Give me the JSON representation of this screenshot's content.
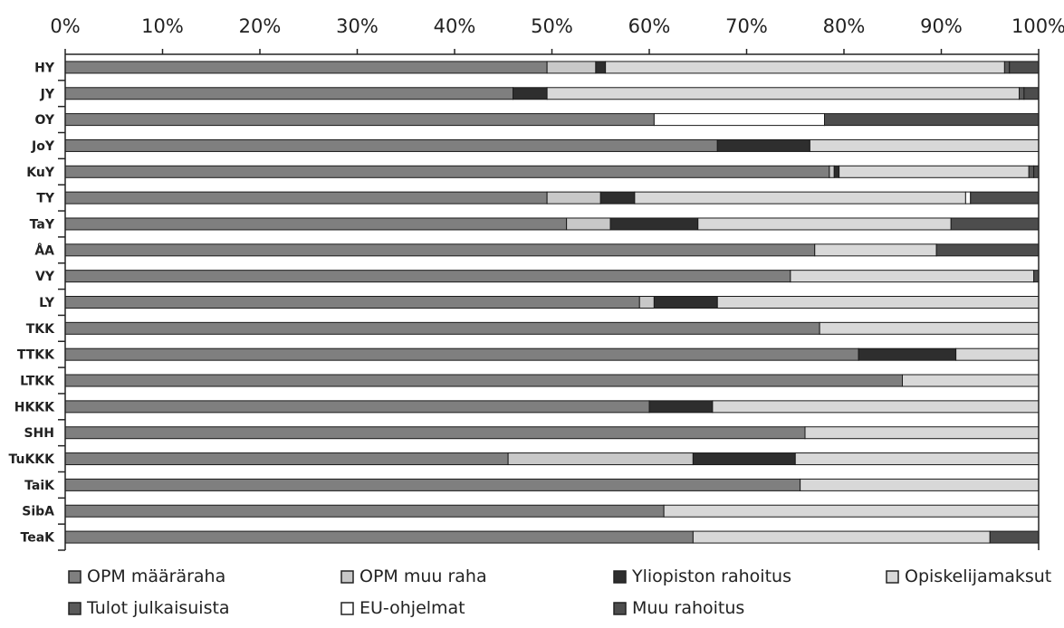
{
  "chart_data": {
    "type": "bar",
    "orientation": "horizontal",
    "stacked": true,
    "percent_stacked": true,
    "title": "",
    "xlabel": "",
    "ylabel": "",
    "xlim": [
      0,
      100
    ],
    "x_tick_labels": [
      "0%",
      "10%",
      "20%",
      "30%",
      "40%",
      "50%",
      "60%",
      "70%",
      "80%",
      "90%",
      "100%"
    ],
    "categories": [
      "HY",
      "JY",
      "OY",
      "JoY",
      "KuY",
      "TY",
      "TaY",
      "ÅA",
      "VY",
      "LY",
      "TKK",
      "TTKK",
      "LTKK",
      "HKKK",
      "SHH",
      "TuKKK",
      "TaiK",
      "SibA",
      "TeaK"
    ],
    "legend_position": "bottom",
    "series": [
      {
        "name": "OPM määräraha",
        "color": "#7f7f7f",
        "values": [
          49.5,
          46.0,
          60.5,
          67.0,
          78.5,
          49.5,
          51.5,
          77.0,
          74.5,
          59.0,
          77.5,
          81.5,
          86.0,
          60.0,
          76.0,
          45.5,
          75.5,
          61.5,
          64.5
        ]
      },
      {
        "name": "OPM muu raha",
        "color": "#c8c8c8",
        "values": [
          5.0,
          0,
          0,
          0,
          0.5,
          5.5,
          4.5,
          0,
          0,
          1.5,
          0,
          0,
          0,
          0,
          0,
          19.0,
          0,
          0,
          0
        ]
      },
      {
        "name": "Yliopiston rahoitus",
        "color": "#2e2e2e",
        "values": [
          1.0,
          3.5,
          0,
          9.5,
          0.5,
          3.5,
          9.0,
          0,
          0,
          6.5,
          0,
          10.0,
          0,
          6.5,
          0,
          10.5,
          0,
          0,
          0
        ]
      },
      {
        "name": "Opiskelijamaksut",
        "color": "#d8d8d8",
        "values": [
          41.0,
          48.5,
          0,
          23.5,
          19.5,
          34.0,
          26.0,
          12.5,
          25.0,
          33.0,
          22.5,
          8.5,
          14.0,
          33.5,
          24.0,
          25.0,
          24.5,
          38.5,
          30.5
        ]
      },
      {
        "name": "Tulot julkaisuista",
        "color": "#5a5a5a",
        "values": [
          0.5,
          0.5,
          0,
          0,
          0.5,
          0,
          0,
          0,
          0,
          0,
          0,
          0,
          0,
          0,
          0,
          0,
          0,
          0,
          0
        ]
      },
      {
        "name": "EU-ohjelmat",
        "color": "#ffffff",
        "values": [
          0,
          0,
          17.5,
          0,
          0,
          0.5,
          0,
          0,
          0,
          0,
          0,
          0,
          0,
          0,
          0,
          0,
          0,
          0,
          0
        ]
      },
      {
        "name": "Muu rahoitus",
        "color": "#4d4d4d",
        "values": [
          3.0,
          1.5,
          22.0,
          0,
          0.5,
          7.0,
          9.0,
          10.5,
          0.5,
          0,
          0,
          0,
          0,
          0,
          0,
          0,
          0,
          0,
          5.0
        ]
      }
    ]
  }
}
